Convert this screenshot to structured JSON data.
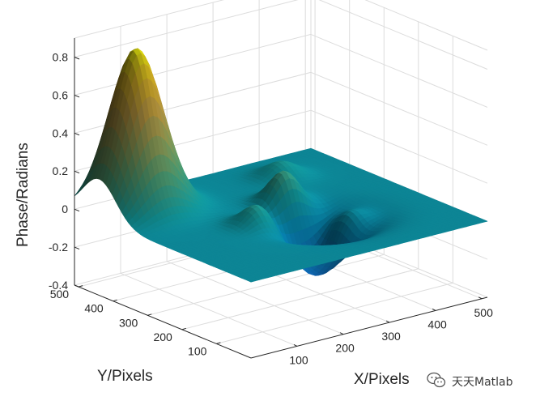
{
  "chart_data": {
    "type": "surface",
    "title": "",
    "xlabel": "X/Pixels",
    "ylabel": "Y/Pixels",
    "zlabel": "Phase/Radians",
    "xlim": [
      0,
      512
    ],
    "ylim": [
      0,
      512
    ],
    "zlim": [
      -0.4,
      0.9
    ],
    "x_ticks": [
      "100",
      "200",
      "300",
      "400",
      "500"
    ],
    "y_ticks": [
      "100",
      "200",
      "300",
      "400",
      "500"
    ],
    "z_ticks": [
      "-0.4",
      "-0.2",
      "0",
      "0.2",
      "0.4",
      "0.6",
      "0.8"
    ],
    "grid": true,
    "colormap": "parula",
    "surface_peaks": [
      {
        "x": 80,
        "y": 440,
        "z": 0.85
      },
      {
        "x": 300,
        "y": 300,
        "z": 0.22
      },
      {
        "x": 200,
        "y": 240,
        "z": 0.14
      },
      {
        "x": 350,
        "y": 200,
        "z": 0.17
      },
      {
        "x": 380,
        "y": 420,
        "z": 0.08
      }
    ],
    "surface_valleys": [
      {
        "x": 300,
        "y": 200,
        "z": -0.32
      }
    ]
  },
  "watermark": {
    "text": "天天Matlab",
    "icon": "wechat-icon"
  }
}
